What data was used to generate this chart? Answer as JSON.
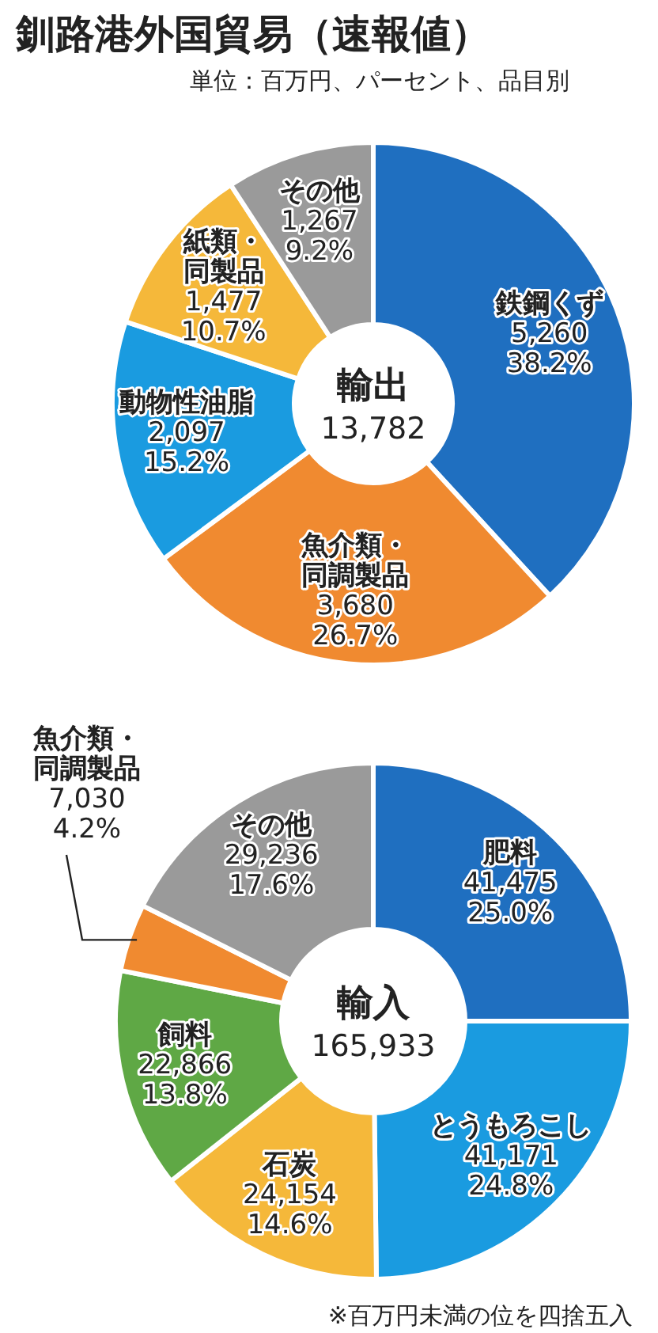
{
  "chart_data": [
    {
      "type": "donut",
      "title": "釧路港外国貿易（速報値）",
      "subtitle": "単位：百万円、パーセント、品目別",
      "categories": [
        "鉄鋼くず",
        "魚介類・同調製品",
        "動物性油脂",
        "紙類・同製品",
        "その他"
      ],
      "values": [
        5260,
        3680,
        2097,
        1477,
        1267
      ],
      "colors": [
        "#1f6fc0",
        "#f08a30",
        "#1a9be0",
        "#f5b83a",
        "#9a9a9a"
      ],
      "value_labels": [
        "5,260\n38.2%",
        "3,680\n26.7%",
        "2,097\n15.2%",
        "1,477\n10.7%",
        "1,267\n9.2%"
      ],
      "annotations": [
        "輸出",
        "13,782"
      ]
    },
    {
      "type": "donut",
      "categories": [
        "肥料",
        "とうもろこし",
        "石炭",
        "飼料",
        "魚介類・同調製品",
        "その他"
      ],
      "values": [
        41475,
        41171,
        24154,
        22866,
        7030,
        29236
      ],
      "colors": [
        "#1f6fc0",
        "#1a9be0",
        "#f5b83a",
        "#5fa845",
        "#f08a30",
        "#9a9a9a"
      ],
      "value_labels": [
        "41,475\n25.0%",
        "41,171\n24.8%",
        "24,154\n14.6%",
        "22,866\n13.8%",
        "7,030\n4.2%",
        "29,236\n17.6%"
      ],
      "annotations": [
        "輸入",
        "165,933",
        "※百万円未満の位を四捨五入"
      ]
    }
  ]
}
